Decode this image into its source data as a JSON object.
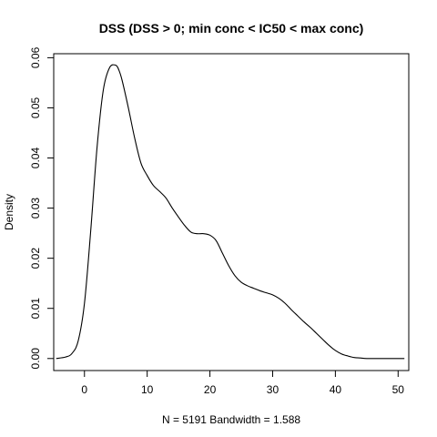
{
  "chart_data": {
    "type": "line",
    "title": "DSS (DSS > 0; min conc < IC50 < max conc)",
    "xlabel": "N = 5191   Bandwidth = 1.588",
    "ylabel": "Density",
    "xlim": [
      -4.9,
      51.7
    ],
    "ylim": [
      -0.0024,
      0.0608
    ],
    "x_ticks": [
      0,
      10,
      20,
      30,
      40,
      50
    ],
    "x_tick_labels": [
      "0",
      "10",
      "20",
      "30",
      "40",
      "50"
    ],
    "y_ticks": [
      0.0,
      0.01,
      0.02,
      0.03,
      0.04,
      0.05,
      0.06
    ],
    "y_tick_labels": [
      "0.00",
      "0.01",
      "0.02",
      "0.03",
      "0.04",
      "0.05",
      "0.06"
    ],
    "grid": false,
    "legend": "none",
    "series": [
      {
        "x": [
          -4.5,
          -3,
          -2,
          -1,
          0,
          1,
          2,
          3,
          4,
          5,
          5.5,
          6,
          7,
          8,
          9,
          10,
          11,
          12,
          13,
          14,
          15,
          16,
          17,
          18,
          19,
          20,
          21,
          22,
          23,
          24,
          25,
          26,
          27,
          28,
          29,
          30,
          31,
          32,
          33,
          34,
          35,
          36,
          37,
          38,
          39,
          40,
          41,
          42,
          43,
          44,
          45,
          47,
          49,
          51
        ],
        "y": [
          0.0,
          0.0003,
          0.001,
          0.0035,
          0.011,
          0.0255,
          0.042,
          0.0535,
          0.058,
          0.0585,
          0.0575,
          0.0555,
          0.05,
          0.044,
          0.039,
          0.0365,
          0.0345,
          0.0333,
          0.032,
          0.03,
          0.0282,
          0.0265,
          0.0252,
          0.0249,
          0.0249,
          0.0246,
          0.0235,
          0.021,
          0.0185,
          0.0165,
          0.0152,
          0.0145,
          0.014,
          0.0135,
          0.0131,
          0.0127,
          0.012,
          0.011,
          0.0097,
          0.0085,
          0.0073,
          0.0062,
          0.005,
          0.0038,
          0.0026,
          0.0016,
          0.0009,
          0.0005,
          0.0002,
          0.0001,
          0.0,
          0.0,
          0.0,
          0.0
        ]
      }
    ]
  }
}
